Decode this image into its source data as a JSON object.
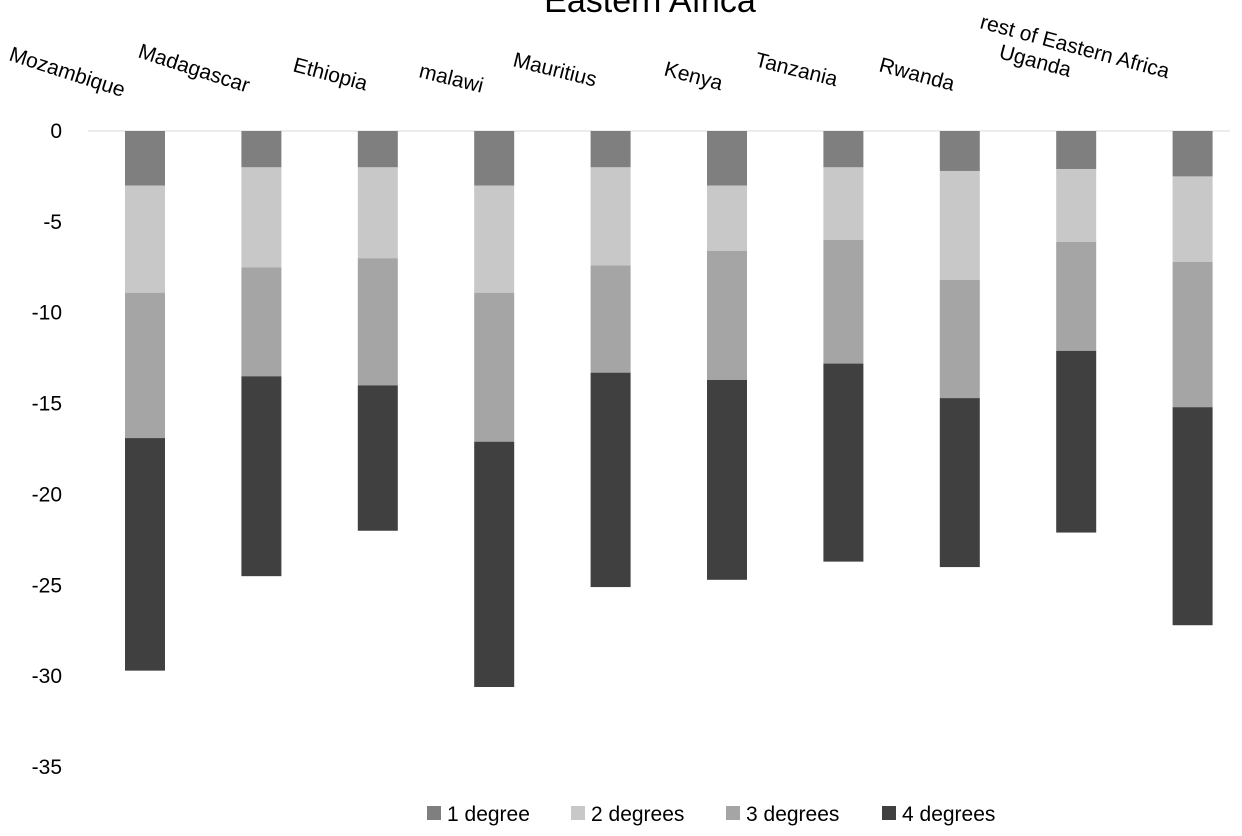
{
  "chart_data": {
    "type": "bar",
    "stacked": true,
    "title": "Eastern Africa",
    "xlabel": "",
    "ylabel": "",
    "ylim": [
      -35,
      0
    ],
    "yticks": [
      0,
      -5,
      -10,
      -15,
      -20,
      -25,
      -30,
      -35
    ],
    "grid": false,
    "legend_position": "bottom",
    "categories": [
      "Mozambique",
      "Madagascar",
      "Ethiopia",
      "malawi",
      "Mauritius",
      "Kenya",
      "Tanzania",
      "Rwanda",
      "Uganda",
      "rest of Eastern Africa"
    ],
    "series": [
      {
        "name": "1 degree",
        "color": "#7f7f7f",
        "values": [
          -3.0,
          -2.0,
          -2.0,
          -3.0,
          -2.0,
          -3.0,
          -2.0,
          -2.2,
          -2.1,
          -2.5
        ]
      },
      {
        "name": "2 degrees",
        "color": "#c8c8c8",
        "values": [
          -5.9,
          -5.5,
          -5.0,
          -5.9,
          -5.4,
          -3.6,
          -4.0,
          -6.0,
          -4.0,
          -4.7
        ]
      },
      {
        "name": "3 degrees",
        "color": "#a5a5a5",
        "values": [
          -8.0,
          -6.0,
          -7.0,
          -8.2,
          -5.9,
          -7.1,
          -6.8,
          -6.5,
          -6.0,
          -8.0
        ]
      },
      {
        "name": "4 degrees",
        "color": "#404040",
        "values": [
          -12.8,
          -11.0,
          -8.0,
          -13.5,
          -11.8,
          -11.0,
          -10.9,
          -9.3,
          -10.0,
          -12.0
        ]
      }
    ]
  }
}
